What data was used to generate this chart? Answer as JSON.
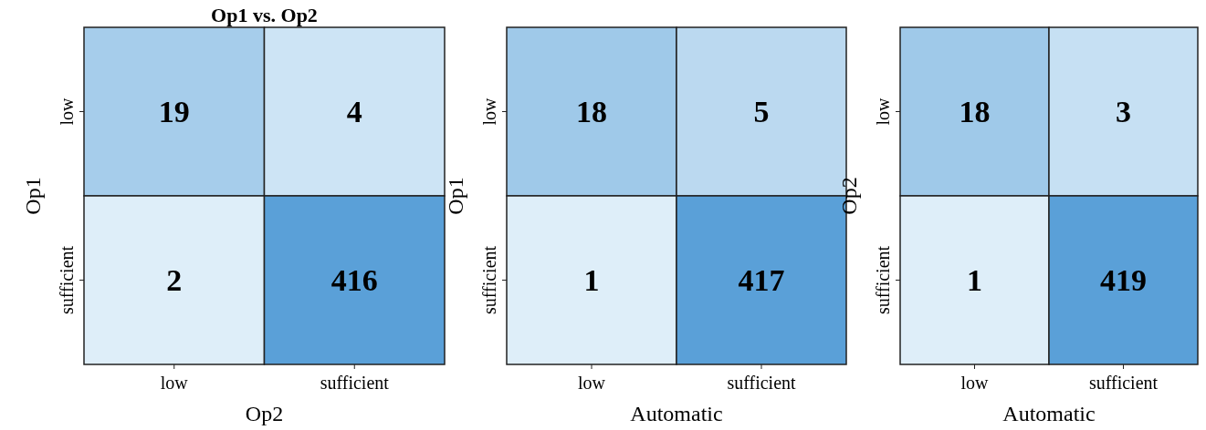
{
  "chart_data": [
    {
      "type": "heatmap",
      "title": "Op1 vs. Op2",
      "xlabel": "Op2",
      "ylabel": "Op1",
      "categories": [
        "low",
        "sufficient"
      ],
      "y_categories": [
        "low",
        "sufficient"
      ],
      "cells": [
        [
          19,
          4
        ],
        [
          2,
          416
        ]
      ],
      "data_labels": true
    },
    {
      "type": "heatmap",
      "xlabel": "Automatic",
      "ylabel": "Op1",
      "categories": [
        "low",
        "sufficient"
      ],
      "y_categories": [
        "low",
        "sufficient"
      ],
      "cells": [
        [
          18,
          5
        ],
        [
          1,
          417
        ]
      ],
      "data_labels": true
    },
    {
      "type": "heatmap",
      "xlabel": "Automatic",
      "ylabel": "Op2",
      "categories": [
        "low",
        "sufficient"
      ],
      "y_categories": [
        "low",
        "sufficient"
      ],
      "cells": [
        [
          18,
          3
        ],
        [
          1,
          419
        ]
      ],
      "data_labels": true
    }
  ]
}
